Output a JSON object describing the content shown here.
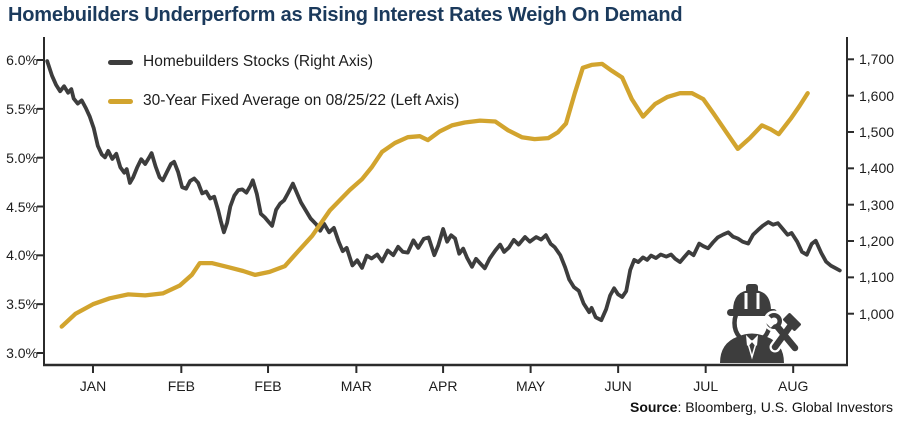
{
  "header": {
    "title": "Homebuilders Underperform as Rising Interest Rates Weigh On Demand"
  },
  "colors": {
    "title_navy": "#1b3a5c",
    "gold": "#d2a42e",
    "dark": "#3d3d3d",
    "axis": "#2b2b2b",
    "tick_text": "#1d1d1d"
  },
  "icons": {
    "worker": "construction-worker-icon"
  },
  "source": {
    "label": "Source",
    "rest": ": Bloomberg, U.S. Global Investors"
  },
  "chart_data": {
    "type": "line",
    "title": "Homebuilders Underperform as Rising Interest Rates Weigh On Demand",
    "legend_position": "top-left inside plot",
    "grid": false,
    "x_axis": {
      "tick_labels": [
        "JAN",
        "FEB",
        "FEB",
        "MAR",
        "APR",
        "MAY",
        "JUN",
        "JUL",
        "AUG"
      ],
      "tick_positions": [
        0.061,
        0.171,
        0.279,
        0.389,
        0.497,
        0.606,
        0.715,
        0.824,
        0.933
      ]
    },
    "left_axis": {
      "range": [
        3.0,
        6.0
      ],
      "tick_values": [
        6.0,
        5.5,
        5.0,
        4.5,
        4.0,
        3.5,
        3.0
      ],
      "tick_labels": [
        "6.0%",
        "5.5%",
        "5.0%",
        "4.5%",
        "4.0%",
        "3.5%",
        "3.0%"
      ]
    },
    "right_axis": {
      "range": [
        1000,
        1700
      ],
      "tick_values": [
        1700,
        1600,
        1500,
        1400,
        1300,
        1200,
        1100,
        1000
      ],
      "tick_labels": [
        "1,700",
        "1,600",
        "1,500",
        "1,400",
        "1,300",
        "1,200",
        "1,100",
        "1,000"
      ]
    },
    "series": [
      {
        "name": "Homebuilders Stocks (Right Axis)",
        "axis": "right",
        "color": "#3d3d3d",
        "points": [
          [
            0.004,
            1695
          ],
          [
            0.01,
            1655
          ],
          [
            0.015,
            1630
          ],
          [
            0.02,
            1612
          ],
          [
            0.025,
            1626
          ],
          [
            0.03,
            1608
          ],
          [
            0.034,
            1618
          ],
          [
            0.037,
            1592
          ],
          [
            0.042,
            1578
          ],
          [
            0.047,
            1587
          ],
          [
            0.052,
            1566
          ],
          [
            0.057,
            1542
          ],
          [
            0.062,
            1510
          ],
          [
            0.067,
            1462
          ],
          [
            0.072,
            1438
          ],
          [
            0.076,
            1430
          ],
          [
            0.08,
            1448
          ],
          [
            0.085,
            1426
          ],
          [
            0.09,
            1440
          ],
          [
            0.095,
            1403
          ],
          [
            0.1,
            1388
          ],
          [
            0.103,
            1398
          ],
          [
            0.107,
            1360
          ],
          [
            0.111,
            1375
          ],
          [
            0.116,
            1402
          ],
          [
            0.121,
            1425
          ],
          [
            0.126,
            1412
          ],
          [
            0.131,
            1430
          ],
          [
            0.134,
            1442
          ],
          [
            0.139,
            1405
          ],
          [
            0.144,
            1375
          ],
          [
            0.148,
            1367
          ],
          [
            0.153,
            1390
          ],
          [
            0.158,
            1412
          ],
          [
            0.162,
            1418
          ],
          [
            0.167,
            1390
          ],
          [
            0.172,
            1348
          ],
          [
            0.177,
            1344
          ],
          [
            0.182,
            1365
          ],
          [
            0.187,
            1372
          ],
          [
            0.192,
            1360
          ],
          [
            0.197,
            1331
          ],
          [
            0.202,
            1336
          ],
          [
            0.207,
            1317
          ],
          [
            0.212,
            1322
          ],
          [
            0.217,
            1283
          ],
          [
            0.22,
            1256
          ],
          [
            0.224,
            1224
          ],
          [
            0.228,
            1250
          ],
          [
            0.232,
            1295
          ],
          [
            0.237,
            1325
          ],
          [
            0.242,
            1340
          ],
          [
            0.247,
            1342
          ],
          [
            0.252,
            1333
          ],
          [
            0.257,
            1352
          ],
          [
            0.26,
            1367
          ],
          [
            0.265,
            1330
          ],
          [
            0.27,
            1275
          ],
          [
            0.275,
            1265
          ],
          [
            0.28,
            1252
          ],
          [
            0.284,
            1242
          ],
          [
            0.289,
            1286
          ],
          [
            0.294,
            1303
          ],
          [
            0.299,
            1312
          ],
          [
            0.304,
            1332
          ],
          [
            0.31,
            1358
          ],
          [
            0.315,
            1332
          ],
          [
            0.32,
            1306
          ],
          [
            0.326,
            1284
          ],
          [
            0.332,
            1262
          ],
          [
            0.339,
            1246
          ],
          [
            0.344,
            1228
          ],
          [
            0.349,
            1247
          ],
          [
            0.355,
            1224
          ],
          [
            0.361,
            1236
          ],
          [
            0.367,
            1198
          ],
          [
            0.372,
            1172
          ],
          [
            0.377,
            1181
          ],
          [
            0.384,
            1133
          ],
          [
            0.39,
            1147
          ],
          [
            0.396,
            1126
          ],
          [
            0.402,
            1160
          ],
          [
            0.408,
            1152
          ],
          [
            0.415,
            1163
          ],
          [
            0.421,
            1144
          ],
          [
            0.428,
            1174
          ],
          [
            0.435,
            1161
          ],
          [
            0.441,
            1184
          ],
          [
            0.447,
            1170
          ],
          [
            0.453,
            1168
          ],
          [
            0.46,
            1202
          ],
          [
            0.466,
            1181
          ],
          [
            0.473,
            1206
          ],
          [
            0.479,
            1210
          ],
          [
            0.486,
            1161
          ],
          [
            0.491,
            1188
          ],
          [
            0.497,
            1233
          ],
          [
            0.502,
            1198
          ],
          [
            0.507,
            1216
          ],
          [
            0.512,
            1207
          ],
          [
            0.517,
            1165
          ],
          [
            0.522,
            1179
          ],
          [
            0.527,
            1153
          ],
          [
            0.533,
            1129
          ],
          [
            0.538,
            1151
          ],
          [
            0.543,
            1139
          ],
          [
            0.549,
            1125
          ],
          [
            0.555,
            1152
          ],
          [
            0.562,
            1174
          ],
          [
            0.568,
            1190
          ],
          [
            0.573,
            1170
          ],
          [
            0.579,
            1182
          ],
          [
            0.585,
            1203
          ],
          [
            0.591,
            1190
          ],
          [
            0.599,
            1211
          ],
          [
            0.605,
            1198
          ],
          [
            0.613,
            1211
          ],
          [
            0.619,
            1204
          ],
          [
            0.625,
            1216
          ],
          [
            0.631,
            1192
          ],
          [
            0.636,
            1183
          ],
          [
            0.643,
            1161
          ],
          [
            0.649,
            1128
          ],
          [
            0.654,
            1094
          ],
          [
            0.66,
            1073
          ],
          [
            0.666,
            1063
          ],
          [
            0.672,
            1028
          ],
          [
            0.679,
            1004
          ],
          [
            0.682,
            1016
          ],
          [
            0.687,
            990
          ],
          [
            0.694,
            982
          ],
          [
            0.7,
            1012
          ],
          [
            0.705,
            1050
          ],
          [
            0.71,
            1070
          ],
          [
            0.715,
            1053
          ],
          [
            0.72,
            1046
          ],
          [
            0.725,
            1062
          ],
          [
            0.73,
            1120
          ],
          [
            0.735,
            1148
          ],
          [
            0.74,
            1142
          ],
          [
            0.746,
            1155
          ],
          [
            0.751,
            1148
          ],
          [
            0.756,
            1160
          ],
          [
            0.762,
            1153
          ],
          [
            0.768,
            1163
          ],
          [
            0.775,
            1157
          ],
          [
            0.781,
            1163
          ],
          [
            0.786,
            1151
          ],
          [
            0.792,
            1142
          ],
          [
            0.797,
            1155
          ],
          [
            0.803,
            1170
          ],
          [
            0.809,
            1161
          ],
          [
            0.816,
            1193
          ],
          [
            0.821,
            1186
          ],
          [
            0.827,
            1180
          ],
          [
            0.833,
            1196
          ],
          [
            0.839,
            1210
          ],
          [
            0.846,
            1218
          ],
          [
            0.852,
            1224
          ],
          [
            0.858,
            1212
          ],
          [
            0.864,
            1207
          ],
          [
            0.87,
            1198
          ],
          [
            0.877,
            1193
          ],
          [
            0.883,
            1217
          ],
          [
            0.889,
            1230
          ],
          [
            0.895,
            1242
          ],
          [
            0.902,
            1252
          ],
          [
            0.908,
            1245
          ],
          [
            0.914,
            1249
          ],
          [
            0.92,
            1233
          ],
          [
            0.926,
            1217
          ],
          [
            0.931,
            1222
          ],
          [
            0.938,
            1198
          ],
          [
            0.944,
            1170
          ],
          [
            0.95,
            1162
          ],
          [
            0.956,
            1192
          ],
          [
            0.961,
            1201
          ],
          [
            0.968,
            1167
          ],
          [
            0.974,
            1143
          ],
          [
            0.98,
            1132
          ],
          [
            0.986,
            1125
          ],
          [
            0.991,
            1119
          ]
        ]
      },
      {
        "name": "30-Year Fixed Average on 08/25/22 (Left Axis)",
        "axis": "left",
        "color": "#d2a42e",
        "points": [
          [
            0.022,
            3.27
          ],
          [
            0.039,
            3.4
          ],
          [
            0.061,
            3.5
          ],
          [
            0.082,
            3.56
          ],
          [
            0.105,
            3.6
          ],
          [
            0.126,
            3.59
          ],
          [
            0.148,
            3.61
          ],
          [
            0.169,
            3.69
          ],
          [
            0.184,
            3.8
          ],
          [
            0.194,
            3.92
          ],
          [
            0.209,
            3.92
          ],
          [
            0.229,
            3.88
          ],
          [
            0.248,
            3.84
          ],
          [
            0.263,
            3.8
          ],
          [
            0.281,
            3.83
          ],
          [
            0.3,
            3.89
          ],
          [
            0.313,
            4.01
          ],
          [
            0.334,
            4.2
          ],
          [
            0.356,
            4.46
          ],
          [
            0.381,
            4.67
          ],
          [
            0.396,
            4.78
          ],
          [
            0.408,
            4.9
          ],
          [
            0.421,
            5.06
          ],
          [
            0.437,
            5.15
          ],
          [
            0.453,
            5.21
          ],
          [
            0.468,
            5.22
          ],
          [
            0.478,
            5.18
          ],
          [
            0.493,
            5.27
          ],
          [
            0.508,
            5.33
          ],
          [
            0.524,
            5.36
          ],
          [
            0.543,
            5.38
          ],
          [
            0.562,
            5.37
          ],
          [
            0.578,
            5.28
          ],
          [
            0.595,
            5.21
          ],
          [
            0.611,
            5.19
          ],
          [
            0.628,
            5.2
          ],
          [
            0.64,
            5.26
          ],
          [
            0.65,
            5.35
          ],
          [
            0.661,
            5.66
          ],
          [
            0.671,
            5.92
          ],
          [
            0.682,
            5.95
          ],
          [
            0.695,
            5.96
          ],
          [
            0.707,
            5.89
          ],
          [
            0.72,
            5.82
          ],
          [
            0.732,
            5.6
          ],
          [
            0.746,
            5.42
          ],
          [
            0.761,
            5.55
          ],
          [
            0.776,
            5.62
          ],
          [
            0.792,
            5.66
          ],
          [
            0.807,
            5.66
          ],
          [
            0.821,
            5.6
          ],
          [
            0.834,
            5.45
          ],
          [
            0.849,
            5.27
          ],
          [
            0.864,
            5.09
          ],
          [
            0.879,
            5.2
          ],
          [
            0.894,
            5.33
          ],
          [
            0.905,
            5.29
          ],
          [
            0.915,
            5.24
          ],
          [
            0.93,
            5.4
          ],
          [
            0.941,
            5.53
          ],
          [
            0.951,
            5.66
          ]
        ]
      }
    ]
  }
}
